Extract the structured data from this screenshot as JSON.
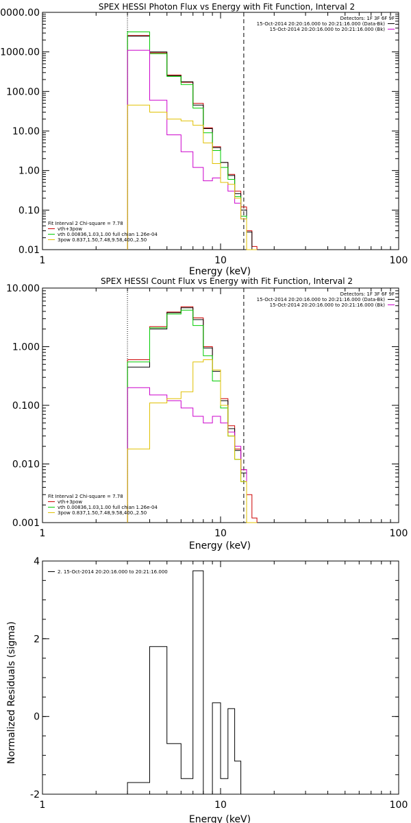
{
  "panels": [
    {
      "title": "SPEX HESSI Photon Flux vs Energy with Fit Function, Interval 2",
      "xlabel": "Energy (keV)",
      "ylabel": "",
      "legend_right": {
        "header": "Detectors: 1F 3F 6F 9F",
        "lines": [
          {
            "text": "15-Oct-2014 20:20:16.000 to 20:21:16.000 (Data-Bk)",
            "color": "#000000"
          },
          {
            "text": "15-Oct-2014 20:20:16.000 to 20:21:16.000 (Bk)",
            "color": "#cc00cc"
          }
        ]
      },
      "legend_left": {
        "header": "Fit Interval 2   Chi-square = 7.78",
        "lines": [
          {
            "text": "vth+3pow",
            "color": "#cc0000"
          },
          {
            "text": "vth 0.00836,1.03,1.00  full chian 1.26e-04",
            "color": "#00cc00"
          },
          {
            "text": "3pow 0.837,1.50,7.48,9.58,400.,2.50",
            "color": "#e0c000"
          }
        ]
      }
    },
    {
      "title": "SPEX HESSI Count Flux vs Energy with Fit Function, Interval 2",
      "xlabel": "Energy (keV)",
      "ylabel": "",
      "legend_right": {
        "header": "Detectors: 1F 3F 6F 9F",
        "lines": [
          {
            "text": "15-Oct-2014 20:20:16.000 to 20:21:16.000 (Data-Bk)",
            "color": "#000000"
          },
          {
            "text": "15-Oct-2014 20:20:16.000 to 20:21:16.000 (Bk)",
            "color": "#cc00cc"
          }
        ]
      },
      "legend_left": {
        "header": "Fit Interval 2   Chi-square = 7.78",
        "lines": [
          {
            "text": "vth+3pow",
            "color": "#cc0000"
          },
          {
            "text": "vth 0.00836,1.03,1.00  full chian 1.26e-04",
            "color": "#00cc00"
          },
          {
            "text": "3pow 0.837,1.50,7.48,9.58,400.,2.50",
            "color": "#e0c000"
          }
        ]
      }
    },
    {
      "title": "",
      "xlabel": "Energy (keV)",
      "ylabel": "Normalized Residuals (sigma)",
      "legend_left": {
        "header": "",
        "lines": [
          {
            "text": "2. 15-Oct-2014 20:20:16.000 to 20:21:16.000",
            "color": "#000000"
          }
        ]
      }
    }
  ],
  "chart_data": [
    {
      "type": "line",
      "title": "SPEX HESSI Photon Flux vs Energy with Fit Function, Interval 2",
      "xlabel": "Energy (keV)",
      "xscale": "log",
      "yscale": "log",
      "xlim": [
        1,
        100
      ],
      "ylim": [
        0.01,
        10000
      ],
      "xticks": [
        {
          "v": 1,
          "label": "1"
        },
        {
          "v": 10,
          "label": "10"
        },
        {
          "v": 100,
          "label": "100"
        }
      ],
      "yticks": [
        {
          "v": 0.01,
          "label": "0.01"
        },
        {
          "v": 0.1,
          "label": "0.10"
        },
        {
          "v": 1,
          "label": "1.00"
        },
        {
          "v": 10,
          "label": "10.00"
        },
        {
          "v": 100,
          "label": "100.00"
        },
        {
          "v": 1000,
          "label": "1000.00"
        },
        {
          "v": 10000,
          "label": "10000.00"
        }
      ],
      "vlines": [
        {
          "x": 3.0,
          "style": "dotted"
        },
        {
          "x": 13.5,
          "style": "dashed"
        }
      ],
      "bin_edges": [
        3,
        4,
        5,
        6,
        7,
        8,
        9,
        10,
        11,
        12,
        13,
        14,
        15,
        16
      ],
      "series": [
        {
          "name": "vth+3pow",
          "color": "#cc0000",
          "values": [
            2600,
            950,
            260,
            170,
            50,
            12,
            4,
            1.6,
            0.8,
            0.3,
            0.12,
            0.03,
            0.012
          ]
        },
        {
          "name": "Data-Bk",
          "color": "#000000",
          "values": [
            2500,
            1000,
            250,
            175,
            45,
            11.5,
            3.8,
            1.6,
            0.75,
            0.26,
            0.1,
            0.028,
            0.01
          ]
        },
        {
          "name": "vth",
          "color": "#00cc00",
          "values": [
            3200,
            900,
            240,
            150,
            38,
            9,
            3.2,
            1.2,
            0.6,
            0.22,
            0.07,
            0.01,
            0.01
          ]
        },
        {
          "name": "Bk",
          "color": "#cc00cc",
          "values": [
            1100,
            60,
            8,
            3,
            1.2,
            0.55,
            0.65,
            0.5,
            0.3,
            0.15,
            0.06,
            0.01,
            0.01
          ]
        },
        {
          "name": "3pow",
          "color": "#e0c000",
          "values": [
            45,
            30,
            20,
            18,
            14,
            5,
            1.5,
            0.5,
            0.45,
            0.2,
            0.06,
            0.01,
            0.01
          ]
        }
      ]
    },
    {
      "type": "line",
      "title": "SPEX HESSI Count Flux vs Energy with Fit Function, Interval 2",
      "xlabel": "Energy (keV)",
      "xscale": "log",
      "yscale": "log",
      "xlim": [
        1,
        100
      ],
      "ylim": [
        0.001,
        10
      ],
      "xticks": [
        {
          "v": 1,
          "label": "1"
        },
        {
          "v": 10,
          "label": "10"
        },
        {
          "v": 100,
          "label": "100"
        }
      ],
      "yticks": [
        {
          "v": 0.001,
          "label": "0.001"
        },
        {
          "v": 0.01,
          "label": "0.010"
        },
        {
          "v": 0.1,
          "label": "0.100"
        },
        {
          "v": 1,
          "label": "1.000"
        },
        {
          "v": 10,
          "label": "10.000"
        }
      ],
      "vlines": [
        {
          "x": 3.0,
          "style": "dotted"
        },
        {
          "x": 13.5,
          "style": "dashed"
        }
      ],
      "bin_edges": [
        3,
        4,
        5,
        6,
        7,
        8,
        9,
        10,
        11,
        12,
        13,
        14,
        15,
        16
      ],
      "series": [
        {
          "name": "vth+3pow",
          "color": "#cc0000",
          "values": [
            0.6,
            2.2,
            3.9,
            4.8,
            3.1,
            1.0,
            0.4,
            0.13,
            0.045,
            0.018,
            0.008,
            0.003,
            0.0012
          ]
        },
        {
          "name": "Data-Bk",
          "color": "#000000",
          "values": [
            0.45,
            2.0,
            3.8,
            4.6,
            2.9,
            0.95,
            0.38,
            0.12,
            0.04,
            0.017,
            0.007,
            0.001,
            0.001
          ]
        },
        {
          "name": "vth",
          "color": "#00cc00",
          "values": [
            0.55,
            2.1,
            3.6,
            4.2,
            2.3,
            0.7,
            0.26,
            0.09,
            0.03,
            0.012,
            0.005,
            0.001,
            0.001
          ]
        },
        {
          "name": "Bk",
          "color": "#cc00cc",
          "values": [
            0.2,
            0.15,
            0.12,
            0.09,
            0.065,
            0.05,
            0.065,
            0.05,
            0.035,
            0.02,
            0.008,
            0.001,
            0.001
          ]
        },
        {
          "name": "3pow",
          "color": "#e0c000",
          "values": [
            0.018,
            0.11,
            0.13,
            0.17,
            0.55,
            0.6,
            0.4,
            0.1,
            0.03,
            0.012,
            0.005,
            0.001,
            0.001
          ]
        }
      ]
    },
    {
      "type": "line",
      "title": "",
      "xlabel": "Energy (keV)",
      "ylabel": "Normalized Residuals (sigma)",
      "xscale": "log",
      "yscale": "linear",
      "xlim": [
        1,
        100
      ],
      "ylim": [
        -2,
        4
      ],
      "xticks": [
        {
          "v": 1,
          "label": "1"
        },
        {
          "v": 10,
          "label": "10"
        },
        {
          "v": 100,
          "label": "100"
        }
      ],
      "yticks": [
        {
          "v": -2,
          "label": "-2"
        },
        {
          "v": 0,
          "label": "0"
        },
        {
          "v": 2,
          "label": "2"
        },
        {
          "v": 4,
          "label": "4"
        }
      ],
      "vlines": [],
      "bin_edges": [
        3,
        4,
        5,
        6,
        7,
        8,
        9,
        10,
        11,
        12,
        13
      ],
      "series": [
        {
          "name": "2. 15-Oct-2014 20:20:16.000 to 20:21:16.000",
          "color": "#000000",
          "values": [
            -1.7,
            1.8,
            -0.7,
            -1.6,
            3.75,
            -2.0,
            0.35,
            -1.6,
            0.2,
            -1.15
          ]
        }
      ]
    }
  ]
}
